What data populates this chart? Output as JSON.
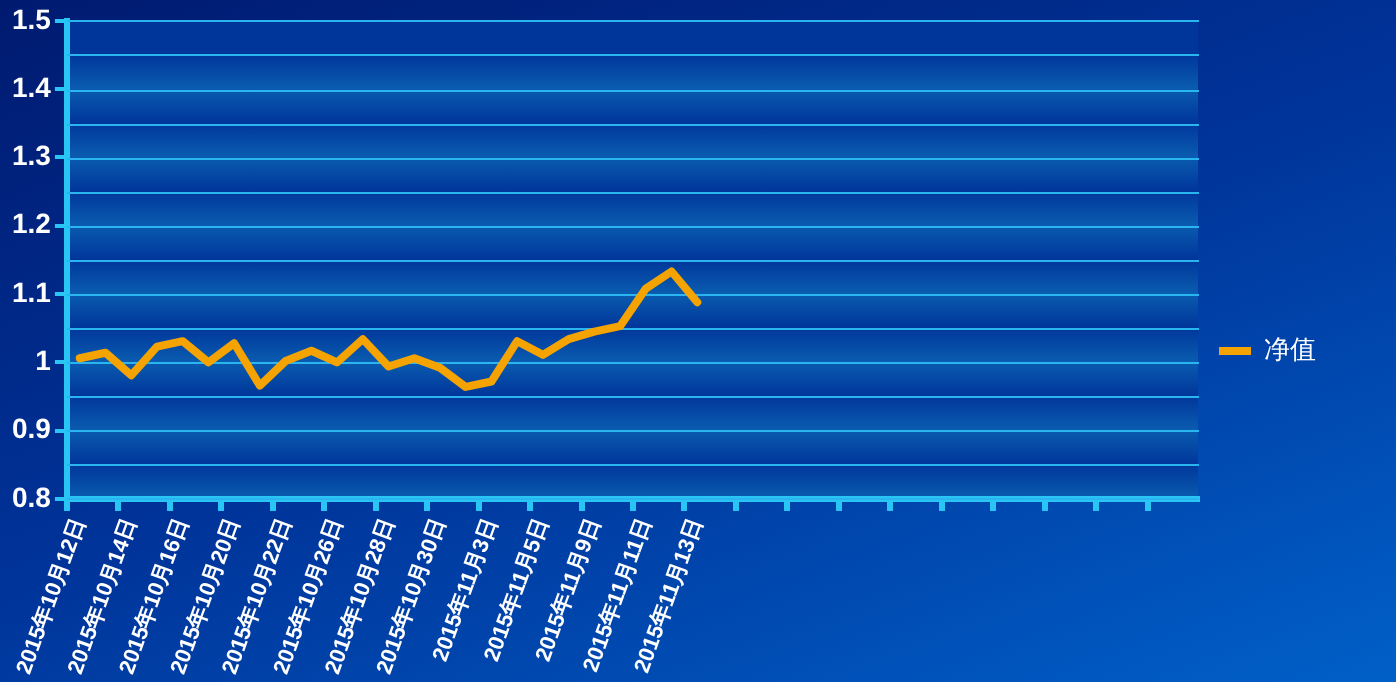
{
  "chart_data": {
    "type": "line",
    "categories": [
      "2015年10月12日",
      null,
      "2015年10月14日",
      null,
      "2015年10月16日",
      null,
      "2015年10月20日",
      null,
      "2015年10月22日",
      null,
      "2015年10月26日",
      null,
      "2015年10月28日",
      null,
      "2015年10月30日",
      null,
      "2015年11月3日",
      null,
      "2015年11月5日",
      null,
      "2015年11月9日",
      null,
      "2015年11月11日",
      null,
      "2015年11月13日",
      null,
      null,
      null,
      null,
      null,
      null,
      null,
      null,
      null,
      null,
      null,
      null,
      null,
      null,
      null,
      null,
      null,
      null,
      null
    ],
    "series": [
      {
        "name": "净值",
        "color": "#f5a300",
        "values": [
          1.006,
          1.014,
          0.981,
          1.023,
          1.031,
          1.0,
          1.028,
          0.966,
          1.002,
          1.017,
          1.0,
          1.034,
          0.994,
          1.006,
          0.992,
          0.964,
          0.972,
          1.031,
          1.011,
          1.034,
          1.045,
          1.053,
          1.108,
          1.133,
          1.088,
          null,
          null,
          null,
          null,
          null,
          null,
          null,
          null,
          null,
          null,
          null,
          null,
          null,
          null,
          null,
          null,
          null,
          null,
          null
        ]
      }
    ],
    "ylim": [
      0.8,
      1.5
    ],
    "yticks": [
      0.8,
      {
        "value": 0.85,
        "label": null
      },
      0.9,
      {
        "value": 0.95,
        "label": null
      },
      1,
      {
        "value": 1.05,
        "label": null
      },
      1.1,
      {
        "value": 1.15,
        "label": null
      },
      1.2,
      {
        "value": 1.25,
        "label": null
      },
      1.3,
      {
        "value": 1.35,
        "label": null
      },
      1.4,
      {
        "value": 1.45,
        "label": null
      },
      1.5
    ],
    "grid": "y",
    "legend": "right",
    "marker": "none",
    "line_style": "solid"
  }
}
